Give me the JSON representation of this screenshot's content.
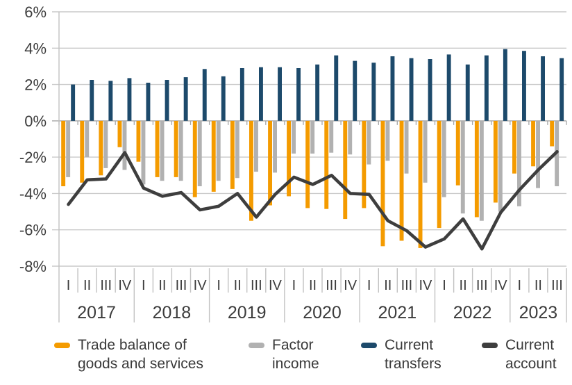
{
  "chart_data": {
    "type": "combo",
    "title": "",
    "xlabel": "",
    "ylabel": "",
    "unit": "%",
    "grid": true,
    "legend_position": "bottom",
    "y_axis": {
      "ticks": [
        6,
        4,
        2,
        0,
        -2,
        -4,
        -6,
        -8
      ],
      "tick_labels": [
        "6%",
        "4%",
        "2%",
        "0%",
        "-2%",
        "-4%",
        "-6%",
        "-8%"
      ],
      "ylim": [
        -8,
        6
      ]
    },
    "x_years": [
      {
        "year": "2017",
        "quarters": [
          "I",
          "II",
          "III",
          "IV"
        ]
      },
      {
        "year": "2018",
        "quarters": [
          "I",
          "II",
          "III",
          "IV"
        ]
      },
      {
        "year": "2019",
        "quarters": [
          "I",
          "II",
          "III",
          "IV"
        ]
      },
      {
        "year": "2020",
        "quarters": [
          "I",
          "II",
          "III",
          "IV"
        ]
      },
      {
        "year": "2021",
        "quarters": [
          "I",
          "II",
          "III",
          "IV"
        ]
      },
      {
        "year": "2022",
        "quarters": [
          "I",
          "II",
          "III",
          "IV"
        ]
      },
      {
        "year": "2023",
        "quarters": [
          "I",
          "II",
          "III"
        ]
      }
    ],
    "series": [
      {
        "name": "Trade balance of goods and services",
        "type": "bar",
        "color": "#F49B00",
        "values": [
          -3.6,
          -3.4,
          -3.0,
          -1.45,
          -2.25,
          -3.1,
          -3.1,
          -4.2,
          -3.9,
          -3.75,
          -5.5,
          -4.65,
          -4.15,
          -4.8,
          -4.85,
          -5.4,
          -4.8,
          -6.9,
          -6.6,
          -7.0,
          -5.9,
          -3.55,
          -5.3,
          -4.5,
          -2.9,
          -2.5,
          -1.4
        ]
      },
      {
        "name": "Factor income",
        "type": "bar",
        "color": "#B1B1B1",
        "values": [
          -3.1,
          -2.0,
          -2.6,
          -2.7,
          -3.5,
          -3.3,
          -3.3,
          -3.6,
          -3.3,
          -3.15,
          -2.8,
          -2.85,
          -1.8,
          -1.8,
          -1.75,
          -1.85,
          -2.4,
          -2.2,
          -2.9,
          -3.4,
          -4.2,
          -5.1,
          -5.5,
          -5.0,
          -4.7,
          -3.7,
          -3.6
        ]
      },
      {
        "name": "Current transfers",
        "type": "bar",
        "color": "#1D4A6B",
        "values": [
          2.0,
          2.25,
          2.2,
          2.35,
          2.1,
          2.25,
          2.4,
          2.85,
          2.45,
          2.9,
          2.95,
          2.95,
          2.9,
          3.1,
          3.6,
          3.3,
          3.2,
          3.55,
          3.45,
          3.4,
          3.65,
          3.1,
          3.6,
          3.95,
          3.85,
          3.55,
          3.45
        ]
      },
      {
        "name": "Current account",
        "type": "line",
        "color": "#3E3E3E",
        "values": [
          -4.6,
          -3.25,
          -3.2,
          -1.75,
          -3.7,
          -4.15,
          -3.95,
          -4.9,
          -4.7,
          -4.0,
          -5.3,
          -4.05,
          -3.1,
          -3.5,
          -3.0,
          -4.0,
          -4.05,
          -5.5,
          -6.05,
          -6.95,
          -6.5,
          -5.4,
          -7.05,
          -5.05,
          -3.8,
          -2.7,
          -1.7
        ]
      }
    ]
  },
  "legend": {
    "items": [
      {
        "label": "Trade balance of\ngoods and services",
        "color": "#F49B00"
      },
      {
        "label": "Factor\nincome",
        "color": "#B1B1B1"
      },
      {
        "label": "Current\ntransfers",
        "color": "#1D4A6B"
      },
      {
        "label": "Current\naccount",
        "color": "#3E3E3E"
      }
    ]
  },
  "colors": {
    "grid": "#CACACA",
    "zero_line": "#A6A6A6",
    "axis": "#C2C2C2",
    "text": "#3C3C3C"
  }
}
